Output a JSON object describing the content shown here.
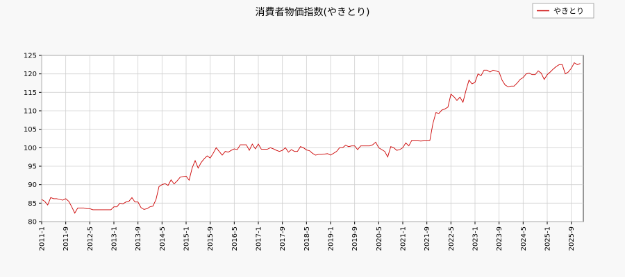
{
  "chart_data": {
    "type": "line",
    "title": "消費者物価指数(やきとり)",
    "x": [
      "2011-1",
      "2011-2",
      "2011-3",
      "2011-4",
      "2011-5",
      "2011-6",
      "2011-7",
      "2011-8",
      "2011-9",
      "2011-10",
      "2011-11",
      "2011-12",
      "2012-1",
      "2012-2",
      "2012-3",
      "2012-4",
      "2012-5",
      "2012-6",
      "2012-7",
      "2012-8",
      "2012-9",
      "2012-10",
      "2012-11",
      "2012-12",
      "2013-1",
      "2013-2",
      "2013-3",
      "2013-4",
      "2013-5",
      "2013-6",
      "2013-7",
      "2013-8",
      "2013-9",
      "2013-10",
      "2013-11",
      "2013-12",
      "2014-1",
      "2014-2",
      "2014-3",
      "2014-4",
      "2014-5",
      "2014-6",
      "2014-7",
      "2014-8",
      "2014-9",
      "2014-10",
      "2014-11",
      "2014-12",
      "2015-1",
      "2015-2",
      "2015-3",
      "2015-4",
      "2015-5",
      "2015-6",
      "2015-7",
      "2015-8",
      "2015-9",
      "2015-10",
      "2015-11",
      "2015-12",
      "2016-1",
      "2016-2",
      "2016-3",
      "2016-4",
      "2016-5",
      "2016-6",
      "2016-7",
      "2016-8",
      "2016-9",
      "2016-10",
      "2016-11",
      "2016-12",
      "2017-1",
      "2017-2",
      "2017-3",
      "2017-4",
      "2017-5",
      "2017-6",
      "2017-7",
      "2017-8",
      "2017-9",
      "2017-10",
      "2017-11",
      "2017-12",
      "2018-1",
      "2018-2",
      "2018-3",
      "2018-4",
      "2018-5",
      "2018-6",
      "2018-7",
      "2018-8",
      "2018-9",
      "2018-10",
      "2018-11",
      "2018-12",
      "2019-1",
      "2019-2",
      "2019-3",
      "2019-4",
      "2019-5",
      "2019-6",
      "2019-7",
      "2019-8",
      "2019-9",
      "2019-10",
      "2019-11",
      "2019-12",
      "2020-1",
      "2020-2",
      "2020-3",
      "2020-4",
      "2020-5",
      "2020-6",
      "2020-7",
      "2020-8",
      "2020-9",
      "2020-10",
      "2020-11",
      "2020-12",
      "2021-1",
      "2021-2",
      "2021-3",
      "2021-4",
      "2021-5",
      "2021-6",
      "2021-7",
      "2021-8",
      "2021-9",
      "2021-10",
      "2021-11",
      "2021-12",
      "2022-1",
      "2022-2",
      "2022-3",
      "2022-4",
      "2022-5",
      "2022-6",
      "2022-7",
      "2022-8",
      "2022-9",
      "2022-10",
      "2022-11",
      "2022-12",
      "2023-1",
      "2023-2",
      "2023-3",
      "2023-4",
      "2023-5",
      "2023-6",
      "2023-7",
      "2023-8",
      "2023-9",
      "2023-10",
      "2023-11",
      "2023-12",
      "2024-1",
      "2024-2",
      "2024-3",
      "2024-4",
      "2024-5",
      "2024-6",
      "2024-7",
      "2024-8",
      "2024-9",
      "2024-10",
      "2024-11",
      "2024-12",
      "2025-1",
      "2025-2",
      "2025-3",
      "2025-4",
      "2025-5",
      "2025-6",
      "2025-7",
      "2025-8",
      "2025-9",
      "2025-10",
      "2025-11",
      "2025-12"
    ],
    "series": [
      {
        "name": "やきとり",
        "color": "#cc0000",
        "values": [
          86,
          85.5,
          84.5,
          86.5,
          86.2,
          86.2,
          86,
          85.8,
          86.2,
          85.5,
          84,
          82.3,
          83.7,
          83.7,
          83.7,
          83.5,
          83.5,
          83.2,
          83.2,
          83.2,
          83.2,
          83.2,
          83.2,
          83.2,
          84,
          84,
          85,
          84.8,
          85.3,
          85.5,
          86.5,
          85.3,
          85.3,
          83.8,
          83.3,
          83.5,
          84,
          84.2,
          86,
          89.5,
          90,
          90.3,
          89.8,
          91.3,
          90.2,
          91,
          92,
          92.2,
          92.3,
          91.2,
          94.5,
          96.5,
          94.5,
          96,
          97,
          97.8,
          97.2,
          98.5,
          100,
          99,
          98,
          99,
          98.8,
          99.3,
          99.7,
          99.5,
          100.8,
          100.8,
          100.8,
          99.3,
          101,
          99.7,
          101,
          99.6,
          99.6,
          99.6,
          100,
          99.7,
          99.3,
          99,
          99.3,
          100,
          98.8,
          99.5,
          99,
          99,
          100.3,
          100,
          99.4,
          99.2,
          98.5,
          98,
          98.2,
          98.2,
          98.3,
          98.4,
          98,
          98.5,
          99,
          100,
          100,
          100.7,
          100.3,
          100.5,
          100.5,
          99.5,
          100.5,
          100.5,
          100.5,
          100.5,
          100.8,
          101.5,
          100,
          99.5,
          99,
          97.5,
          100.3,
          100,
          99.3,
          99.5,
          100,
          101.3,
          100.5,
          102,
          102,
          102,
          101.8,
          102,
          102,
          102,
          106.5,
          109.5,
          109.3,
          110.2,
          110.5,
          111,
          114.5,
          113.8,
          112.8,
          113.7,
          112.3,
          115.5,
          118.3,
          117.3,
          117.7,
          120,
          119.5,
          121,
          121,
          120.5,
          121,
          120.8,
          120.5,
          118.3,
          117,
          116.5,
          116.7,
          116.7,
          117.5,
          118.5,
          119,
          120,
          120.2,
          119.8,
          119.8,
          120.8,
          120.2,
          118.5,
          119.8,
          120.5,
          121.3,
          122,
          122.5,
          122.5,
          120,
          120.5,
          121.5,
          123,
          122.5,
          122.8
        ]
      }
    ],
    "xticks": [
      "2011-1",
      "2011-9",
      "2012-5",
      "2013-1",
      "2013-9",
      "2014-5",
      "2015-1",
      "2015-9",
      "2016-5",
      "2017-1",
      "2017-9",
      "2018-5",
      "2019-1",
      "2019-9",
      "2020-5",
      "2021-1",
      "2021-9",
      "2022-5",
      "2023-1",
      "2023-9",
      "2024-5",
      "2025-1",
      "2025-9"
    ],
    "ylim": [
      80,
      125
    ],
    "yticks": [
      80,
      85,
      90,
      95,
      100,
      105,
      110,
      115,
      120,
      125
    ],
    "grid": true,
    "legend": "upper right"
  }
}
